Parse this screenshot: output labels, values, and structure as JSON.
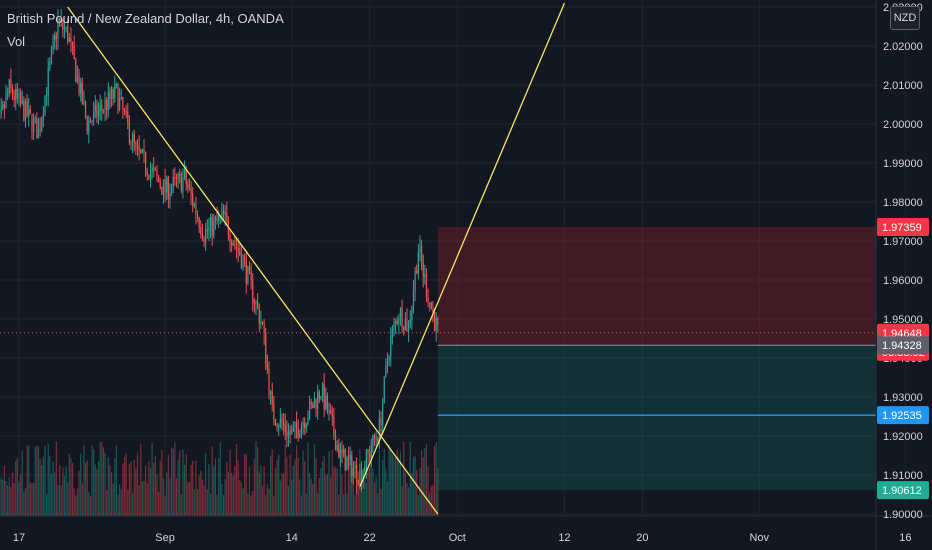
{
  "header": {
    "symbol_title": "British Pound / New Zealand Dollar, 4h, OANDA",
    "volume_label": "Vol",
    "currency_button": "NZD"
  },
  "colors": {
    "background": "#131722",
    "up": "#26a69a",
    "down": "#ef5350",
    "trendline": "#f5e663",
    "stop_zone": "rgba(178,40,51,0.28)",
    "target_zone": "rgba(8,153,129,0.20)",
    "target_line": "#2196f3",
    "grid": "#1f2430",
    "axis_text": "#d1d4dc"
  },
  "chart_data": {
    "type": "candlestick",
    "title": "British Pound / New Zealand Dollar, 4h, OANDA",
    "price_axis": {
      "ylim": [
        1.8995,
        2.0318
      ],
      "ticks": [
        "1.90000",
        "1.91000",
        "1.92000",
        "1.93000",
        "1.94000",
        "1.95000",
        "1.96000",
        "1.97000",
        "1.98000",
        "1.99000",
        "2.00000",
        "2.01000",
        "2.02000",
        "2.03000"
      ]
    },
    "time_axis": {
      "ticks": [
        "17",
        "Sep",
        "14",
        "22",
        "Oct",
        "12",
        "20",
        "Nov",
        "16"
      ]
    },
    "price_labels": [
      {
        "value": 1.97359,
        "text": "1.97359",
        "kind": "stop"
      },
      {
        "value": 1.94648,
        "text": "1.94648",
        "kind": "current"
      },
      {
        "value": 1.94328,
        "text": "1.94328",
        "kind": "entry"
      },
      {
        "value": 1.92535,
        "text": "1.92535",
        "kind": "target-line"
      },
      {
        "value": 1.90612,
        "text": "1.90612",
        "kind": "target"
      }
    ],
    "countdown": "03:33:52",
    "position_tool": {
      "type": "short",
      "start": "Sep 29",
      "end": "Nov 13",
      "entry": 1.94328,
      "stop": 1.97359,
      "target": 1.90612
    },
    "trendlines": [
      {
        "from": {
          "date": "Aug 22",
          "price": 2.03
        },
        "to": {
          "date": "Sep 29",
          "price": 1.9
        }
      },
      {
        "from": {
          "date": "Sep 21",
          "price": 1.907
        },
        "to": {
          "date": "Oct 12",
          "price": 2.031
        }
      }
    ],
    "horizontal_lines": [
      {
        "price": 1.92535,
        "from": "Sep 29",
        "to": "right-edge"
      }
    ],
    "candles_summary": {
      "timeframe": "4h",
      "first_bar": "Aug 14",
      "last_bar": "Sep 29",
      "path": [
        {
          "t": "Aug 14",
          "close": 1.991
        },
        {
          "t": "Aug 16",
          "close": 2.009
        },
        {
          "t": "Aug 19",
          "close": 1.998
        },
        {
          "t": "Aug 21",
          "close": 2.026
        },
        {
          "t": "Aug 22",
          "close": 2.023
        },
        {
          "t": "Aug 24",
          "close": 2.0
        },
        {
          "t": "Aug 27",
          "close": 2.008
        },
        {
          "t": "Aug 29",
          "close": 1.993
        },
        {
          "t": "Sep 1",
          "close": 1.983
        },
        {
          "t": "Sep 3",
          "close": 1.986
        },
        {
          "t": "Sep 5",
          "close": 1.972
        },
        {
          "t": "Sep 7",
          "close": 1.976
        },
        {
          "t": "Sep 9",
          "close": 1.965
        },
        {
          "t": "Sep 11",
          "close": 1.948
        },
        {
          "t": "Sep 12",
          "close": 1.926
        },
        {
          "t": "Sep 14",
          "close": 1.92
        },
        {
          "t": "Sep 16",
          "close": 1.927
        },
        {
          "t": "Sep 17",
          "close": 1.932
        },
        {
          "t": "Sep 19",
          "close": 1.915
        },
        {
          "t": "Sep 21",
          "close": 1.91
        },
        {
          "t": "Sep 23",
          "close": 1.922
        },
        {
          "t": "Sep 24",
          "close": 1.943
        },
        {
          "t": "Sep 25",
          "close": 1.952
        },
        {
          "t": "Sep 26",
          "close": 1.948
        },
        {
          "t": "Sep 27",
          "close": 1.968
        },
        {
          "t": "Sep 28",
          "close": 1.956
        },
        {
          "t": "Sep 29",
          "close": 1.9465
        }
      ]
    }
  }
}
